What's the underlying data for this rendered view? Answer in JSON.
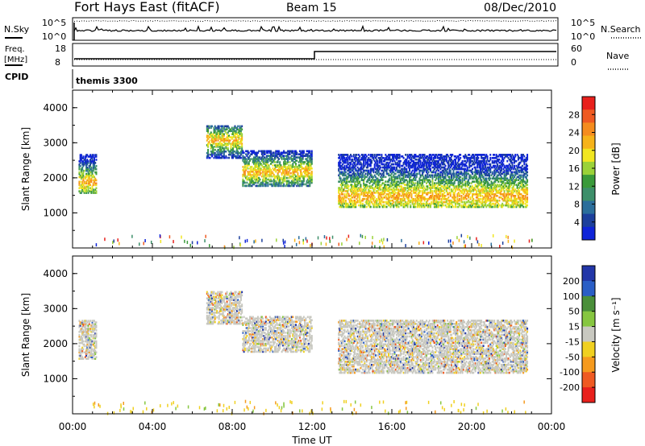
{
  "header": {
    "station": "Fort Hays East (fitACF)",
    "beam": "Beam 15",
    "date": "08/Dec/2010"
  },
  "params": {
    "nsky_label": "N.Sky",
    "nsearch_label": "N.Search",
    "noise_ticks": [
      "10^5",
      "10^0"
    ],
    "freq_label": "Freq.",
    "freq_unit": "[MHz]",
    "freq_ticks": [
      "18",
      "8"
    ],
    "nave_label": "Nave",
    "nave_ticks": [
      "60",
      "0"
    ],
    "cpid_label": "CPID",
    "cpid_value": "themis 3300"
  },
  "chart_data": [
    {
      "type": "heatmap",
      "title": "",
      "xlabel": "",
      "ylabel": "Slant Range [km]",
      "xlim": [
        0,
        24
      ],
      "ylim": [
        0,
        4500
      ],
      "yticks": [
        "1000",
        "2000",
        "3000",
        "4000"
      ],
      "colorbar_label": "Power [dB]",
      "colorbar_ticks": [
        "28",
        "24",
        "20",
        "16",
        "12",
        "8",
        "4"
      ],
      "colors": [
        "#e8201c",
        "#ef5a22",
        "#f58c1e",
        "#f6b31a",
        "#f1e620",
        "#9bd238",
        "#3a9a3a",
        "#3d8f6a",
        "#2b6e9b",
        "#1c3f9c",
        "#0f24d8"
      ],
      "echo_regions": [
        {
          "t_start": 0.3,
          "t_end": 1.2,
          "range_min": 1600,
          "range_max": 2700,
          "peak_range": 1900
        },
        {
          "t_start": 6.7,
          "t_end": 8.5,
          "range_min": 2600,
          "range_max": 3500,
          "peak_range": 3100
        },
        {
          "t_start": 8.5,
          "t_end": 12.0,
          "range_min": 1800,
          "range_max": 2800,
          "peak_range": 2200
        },
        {
          "t_start": 13.3,
          "t_end": 22.8,
          "range_min": 1200,
          "range_max": 2700,
          "peak_range": 1500
        }
      ]
    },
    {
      "type": "heatmap",
      "title": "",
      "xlabel": "Time UT",
      "ylabel": "Slant Range [km]",
      "xlim": [
        0,
        24
      ],
      "ylim": [
        0,
        4500
      ],
      "xticks": [
        "00:00",
        "04:00",
        "08:00",
        "12:00",
        "16:00",
        "20:00",
        "00:00"
      ],
      "yticks": [
        "1000",
        "2000",
        "3000",
        "4000"
      ],
      "colorbar_label": "Velocity [m s⁻¹]",
      "colorbar_ticks": [
        "200",
        "100",
        "50",
        "15",
        "-15",
        "-50",
        "-100",
        "-200"
      ],
      "colors": [
        "#2236a8",
        "#2a5ec6",
        "#4a8f3a",
        "#86c640",
        "#c8c8c0",
        "#f0d020",
        "#f59a1e",
        "#ef5a22",
        "#e8201c"
      ],
      "echo_regions": [
        {
          "t_start": 0.3,
          "t_end": 1.2,
          "range_min": 1600,
          "range_max": 2700,
          "peak_range": 1900
        },
        {
          "t_start": 6.7,
          "t_end": 8.5,
          "range_min": 2600,
          "range_max": 3500,
          "peak_range": 3100
        },
        {
          "t_start": 8.5,
          "t_end": 12.0,
          "range_min": 1800,
          "range_max": 2800,
          "peak_range": 2200
        },
        {
          "t_start": 13.3,
          "t_end": 22.8,
          "range_min": 1200,
          "range_max": 2700,
          "peak_range": 1500
        }
      ]
    }
  ]
}
